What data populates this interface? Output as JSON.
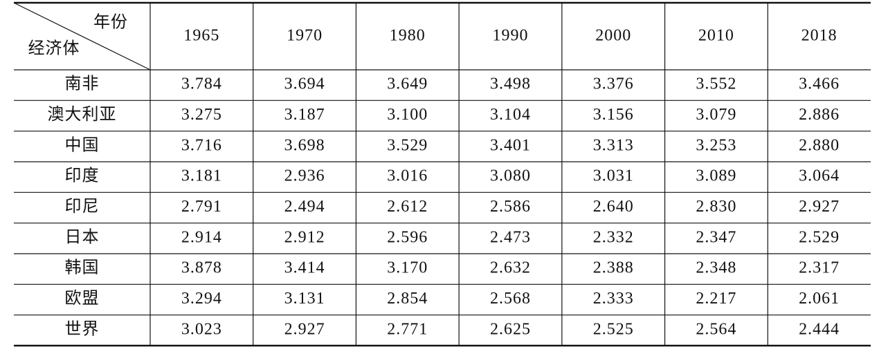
{
  "table": {
    "corner_top": "年份",
    "corner_bottom": "经济体",
    "years": [
      "1965",
      "1970",
      "1980",
      "1990",
      "2000",
      "2010",
      "2018"
    ],
    "rows": [
      {
        "label": "南非",
        "values": [
          "3.784",
          "3.694",
          "3.649",
          "3.498",
          "3.376",
          "3.552",
          "3.466"
        ]
      },
      {
        "label": "澳大利亚",
        "values": [
          "3.275",
          "3.187",
          "3.100",
          "3.104",
          "3.156",
          "3.079",
          "2.886"
        ]
      },
      {
        "label": "中国",
        "values": [
          "3.716",
          "3.698",
          "3.529",
          "3.401",
          "3.313",
          "3.253",
          "2.880"
        ]
      },
      {
        "label": "印度",
        "values": [
          "3.181",
          "2.936",
          "3.016",
          "3.080",
          "3.031",
          "3.089",
          "3.064"
        ]
      },
      {
        "label": "印尼",
        "values": [
          "2.791",
          "2.494",
          "2.612",
          "2.586",
          "2.640",
          "2.830",
          "2.927"
        ]
      },
      {
        "label": "日本",
        "values": [
          "2.914",
          "2.912",
          "2.596",
          "2.473",
          "2.332",
          "2.347",
          "2.529"
        ]
      },
      {
        "label": "韩国",
        "values": [
          "3.878",
          "3.414",
          "3.170",
          "2.632",
          "2.388",
          "2.348",
          "2.317"
        ]
      },
      {
        "label": "欧盟",
        "values": [
          "3.294",
          "3.131",
          "2.854",
          "2.568",
          "2.333",
          "2.217",
          "2.061"
        ]
      },
      {
        "label": "世界",
        "values": [
          "3.023",
          "2.927",
          "2.771",
          "2.625",
          "2.525",
          "2.564",
          "2.444"
        ]
      }
    ]
  }
}
